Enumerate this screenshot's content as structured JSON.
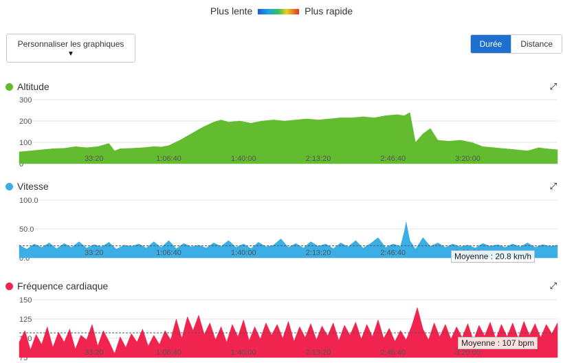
{
  "legend": {
    "slow": "Plus lente",
    "fast": "Plus rapide"
  },
  "customize_label": "Personnaliser les graphiques",
  "toggle": {
    "duration": "Durée",
    "distance": "Distance",
    "selected": "Durée"
  },
  "colors": {
    "altitude": "#63bb2f",
    "speed": "#3aaee5",
    "heart": "#f0244e",
    "accent": "#1f6fd0"
  },
  "icons": {
    "expand": "expand-arrows-icon",
    "dropdown": "caret-down-icon"
  },
  "chart_data": [
    {
      "type": "area",
      "title": "Altitude",
      "yticks": [
        "300",
        "200",
        "100",
        "0"
      ],
      "ylim": [
        0,
        300
      ],
      "xticks": [
        "33:20",
        "1:06:40",
        "1:40:00",
        "2:13:20",
        "2:46:40",
        "3:20:00"
      ],
      "xlim_seconds": [
        0,
        14400
      ],
      "grid": true,
      "series": [
        {
          "values": [
            [
              0,
              55
            ],
            [
              300,
              60
            ],
            [
              600,
              65
            ],
            [
              900,
              70
            ],
            [
              1200,
              72
            ],
            [
              1500,
              80
            ],
            [
              1800,
              75
            ],
            [
              2100,
              80
            ],
            [
              2400,
              95
            ],
            [
              2550,
              60
            ],
            [
              2700,
              70
            ],
            [
              3000,
              72
            ],
            [
              3300,
              75
            ],
            [
              3600,
              80
            ],
            [
              3800,
              78
            ],
            [
              4000,
              85
            ],
            [
              4300,
              110
            ],
            [
              4600,
              140
            ],
            [
              4900,
              170
            ],
            [
              5200,
              195
            ],
            [
              5400,
              205
            ],
            [
              5600,
              195
            ],
            [
              5900,
              200
            ],
            [
              6200,
              190
            ],
            [
              6500,
              200
            ],
            [
              6800,
              205
            ],
            [
              7100,
              200
            ],
            [
              7400,
              205
            ],
            [
              7700,
              210
            ],
            [
              8000,
              205
            ],
            [
              8300,
              210
            ],
            [
              8600,
              215
            ],
            [
              8900,
              215
            ],
            [
              9200,
              220
            ],
            [
              9500,
              215
            ],
            [
              9800,
              225
            ],
            [
              10100,
              230
            ],
            [
              10300,
              225
            ],
            [
              10450,
              240
            ],
            [
              10600,
              100
            ],
            [
              10800,
              140
            ],
            [
              11000,
              165
            ],
            [
              11200,
              110
            ],
            [
              11500,
              105
            ],
            [
              11800,
              110
            ],
            [
              12100,
              100
            ],
            [
              12400,
              80
            ],
            [
              12700,
              75
            ],
            [
              13000,
              70
            ],
            [
              13300,
              65
            ],
            [
              13600,
              60
            ],
            [
              13900,
              75
            ],
            [
              14100,
              70
            ],
            [
              14400,
              65
            ]
          ]
        }
      ]
    },
    {
      "type": "area",
      "title": "Vitesse",
      "yticks": [
        "100.0",
        "50.0",
        "0.0"
      ],
      "ylim": [
        0,
        100
      ],
      "xticks": [
        "33:20",
        "1:06:40",
        "1:40:00",
        "2:13:20",
        "2:46:40",
        "3:20:00"
      ],
      "xlim_seconds": [
        0,
        14400
      ],
      "average": 20.8,
      "average_label": "Moyenne : 20.8 km/h",
      "grid": true,
      "series": [
        {
          "values": [
            [
              0,
              22
            ],
            [
              200,
              15
            ],
            [
              400,
              24
            ],
            [
              600,
              18
            ],
            [
              800,
              26
            ],
            [
              1000,
              16
            ],
            [
              1200,
              25
            ],
            [
              1400,
              18
            ],
            [
              1600,
              28
            ],
            [
              1800,
              17
            ],
            [
              2000,
              23
            ],
            [
              2200,
              19
            ],
            [
              2400,
              27
            ],
            [
              2600,
              15
            ],
            [
              2800,
              22
            ],
            [
              3000,
              20
            ],
            [
              3200,
              24
            ],
            [
              3400,
              17
            ],
            [
              3600,
              28
            ],
            [
              3800,
              18
            ],
            [
              4000,
              30
            ],
            [
              4200,
              16
            ],
            [
              4400,
              25
            ],
            [
              4600,
              19
            ],
            [
              4800,
              22
            ],
            [
              5000,
              17
            ],
            [
              5200,
              26
            ],
            [
              5400,
              20
            ],
            [
              5600,
              30
            ],
            [
              5800,
              18
            ],
            [
              6000,
              24
            ],
            [
              6200,
              16
            ],
            [
              6400,
              27
            ],
            [
              6600,
              19
            ],
            [
              6800,
              22
            ],
            [
              7000,
              33
            ],
            [
              7200,
              18
            ],
            [
              7400,
              25
            ],
            [
              7600,
              17
            ],
            [
              7800,
              28
            ],
            [
              8000,
              20
            ],
            [
              8200,
              24
            ],
            [
              8400,
              16
            ],
            [
              8600,
              26
            ],
            [
              8800,
              19
            ],
            [
              9000,
              30
            ],
            [
              9200,
              17
            ],
            [
              9400,
              25
            ],
            [
              9600,
              35
            ],
            [
              9800,
              18
            ],
            [
              10000,
              24
            ],
            [
              10200,
              20
            ],
            [
              10300,
              45
            ],
            [
              10350,
              62
            ],
            [
              10450,
              30
            ],
            [
              10600,
              15
            ],
            [
              10800,
              35
            ],
            [
              11000,
              20
            ],
            [
              11200,
              26
            ],
            [
              11400,
              18
            ],
            [
              11600,
              24
            ],
            [
              11800,
              19
            ],
            [
              12000,
              22
            ],
            [
              12200,
              17
            ],
            [
              12400,
              25
            ],
            [
              12600,
              20
            ],
            [
              12800,
              23
            ],
            [
              13000,
              18
            ],
            [
              13200,
              24
            ],
            [
              13400,
              19
            ],
            [
              13600,
              26
            ],
            [
              13800,
              18
            ],
            [
              14000,
              23
            ],
            [
              14200,
              20
            ],
            [
              14400,
              22
            ]
          ]
        }
      ]
    },
    {
      "type": "area",
      "title": "Fréquence cardiaque",
      "yticks": [
        "150",
        "125",
        "100",
        "75"
      ],
      "ylim": [
        75,
        150
      ],
      "xticks": [
        "33:20",
        "1:06:40",
        "1:40:00",
        "2:13:20",
        "2:46:40",
        "3:20:00"
      ],
      "xlim_seconds": [
        0,
        14400
      ],
      "average": 107,
      "average_label": "Moyenne : 107 bpm",
      "grid": true,
      "series": [
        {
          "values": [
            [
              0,
              95
            ],
            [
              150,
              110
            ],
            [
              300,
              85
            ],
            [
              450,
              105
            ],
            [
              600,
              92
            ],
            [
              750,
              115
            ],
            [
              900,
              88
            ],
            [
              1050,
              108
            ],
            [
              1200,
              95
            ],
            [
              1350,
              112
            ],
            [
              1500,
              86
            ],
            [
              1650,
              104
            ],
            [
              1800,
              98
            ],
            [
              1950,
              118
            ],
            [
              2100,
              90
            ],
            [
              2250,
              110
            ],
            [
              2400,
              96
            ],
            [
              2550,
              80
            ],
            [
              2700,
              102
            ],
            [
              2850,
              88
            ],
            [
              3000,
              106
            ],
            [
              3150,
              95
            ],
            [
              3300,
              112
            ],
            [
              3450,
              90
            ],
            [
              3600,
              104
            ],
            [
              3750,
              92
            ],
            [
              3900,
              110
            ],
            [
              4050,
              98
            ],
            [
              4200,
              125
            ],
            [
              4350,
              100
            ],
            [
              4500,
              128
            ],
            [
              4650,
              110
            ],
            [
              4800,
              130
            ],
            [
              4950,
              105
            ],
            [
              5100,
              120
            ],
            [
              5250,
              98
            ],
            [
              5400,
              115
            ],
            [
              5550,
              95
            ],
            [
              5700,
              118
            ],
            [
              5850,
              102
            ],
            [
              6000,
              124
            ],
            [
              6150,
              97
            ],
            [
              6300,
              115
            ],
            [
              6450,
              99
            ],
            [
              6600,
              120
            ],
            [
              6750,
              104
            ],
            [
              6900,
              118
            ],
            [
              7050,
              100
            ],
            [
              7200,
              122
            ],
            [
              7350,
              96
            ],
            [
              7500,
              115
            ],
            [
              7650,
              101
            ],
            [
              7800,
              119
            ],
            [
              7950,
              98
            ],
            [
              8100,
              116
            ],
            [
              8250,
              103
            ],
            [
              8400,
              120
            ],
            [
              8550,
              97
            ],
            [
              8700,
              117
            ],
            [
              8850,
              104
            ],
            [
              9000,
              121
            ],
            [
              9150,
              99
            ],
            [
              9300,
              118
            ],
            [
              9450,
              102
            ],
            [
              9600,
              124
            ],
            [
              9750,
              100
            ],
            [
              9900,
              113
            ],
            [
              10050,
              96
            ],
            [
              10200,
              110
            ],
            [
              10350,
              98
            ],
            [
              10500,
              116
            ],
            [
              10650,
              140
            ],
            [
              10800,
              112
            ],
            [
              10950,
              98
            ],
            [
              11100,
              120
            ],
            [
              11250,
              102
            ],
            [
              11400,
              118
            ],
            [
              11550,
              99
            ],
            [
              11700,
              115
            ],
            [
              11850,
              101
            ],
            [
              12000,
              119
            ],
            [
              12150,
              97
            ],
            [
              12300,
              117
            ],
            [
              12450,
              103
            ],
            [
              12600,
              121
            ],
            [
              12750,
              99
            ],
            [
              12900,
              118
            ],
            [
              13050,
              102
            ],
            [
              13200,
              120
            ],
            [
              13350,
              100
            ],
            [
              13500,
              122
            ],
            [
              13650,
              104
            ],
            [
              13800,
              119
            ],
            [
              13950,
              101
            ],
            [
              14100,
              118
            ],
            [
              14250,
              106
            ],
            [
              14400,
              120
            ]
          ]
        }
      ]
    }
  ]
}
